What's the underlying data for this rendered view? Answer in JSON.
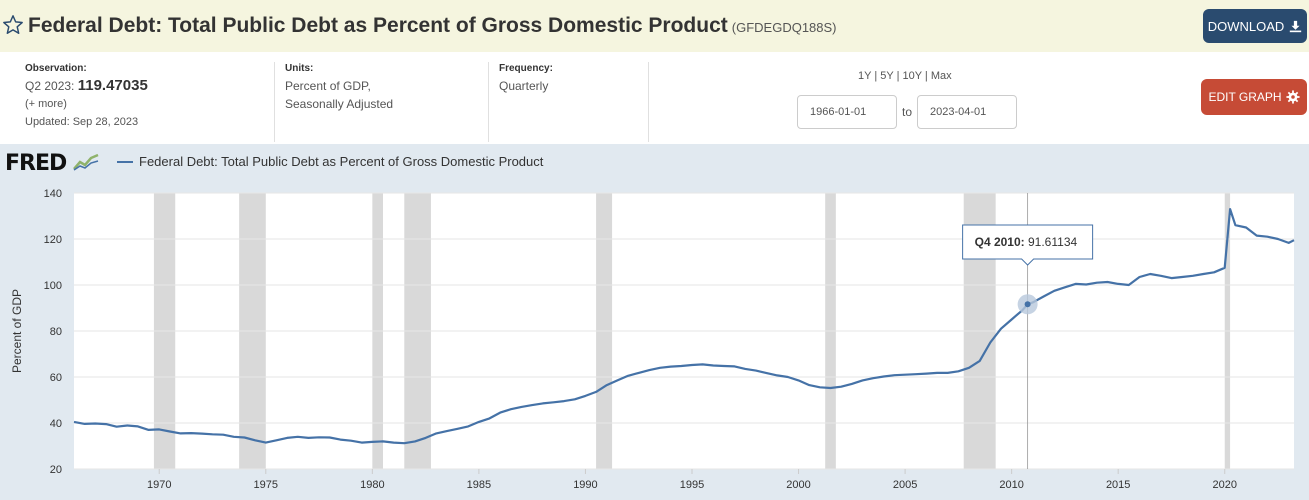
{
  "header": {
    "title": "Federal Debt: Total Public Debt as Percent of Gross Domestic Product",
    "series_id": "(GFDEGDQ188S)",
    "download_label": "DOWNLOAD"
  },
  "meta": {
    "observation_label": "Observation:",
    "observation_period": "Q2 2023:",
    "observation_value": "119.47035",
    "more_link": "(+ more)",
    "updated": "Updated: Sep 28, 2023",
    "units_label": "Units:",
    "units_line1": "Percent of GDP,",
    "units_line2": "Seasonally Adjusted",
    "frequency_label": "Frequency:",
    "frequency_value": "Quarterly",
    "ranges": [
      "1Y",
      "5Y",
      "10Y",
      "Max"
    ],
    "start_date": "1966-01-01",
    "to_label": "to",
    "end_date": "2023-04-01",
    "edit_label": "EDIT GRAPH"
  },
  "logo_text": "FRED",
  "colors": {
    "series": "#4572a7",
    "recession": "#d9d9d9",
    "download_bg": "#2a4b6f",
    "edit_bg": "#c64b36",
    "panel_bg": "#e1e9f0",
    "title_bg": "#f5f5df"
  },
  "chart_data": {
    "type": "line",
    "title": "Federal Debt: Total Public Debt as Percent of Gross Domestic Product",
    "xlabel": "",
    "ylabel": "Percent of GDP",
    "xlim": [
      1966.0,
      2023.25
    ],
    "ylim": [
      20,
      140
    ],
    "y_ticks": [
      20,
      40,
      60,
      80,
      100,
      120,
      140
    ],
    "x_ticks": [
      1970,
      1975,
      1980,
      1985,
      1990,
      1995,
      2000,
      2005,
      2010,
      2015,
      2020
    ],
    "grid": true,
    "legend": "top-left",
    "recessions": [
      [
        1969.75,
        1970.75
      ],
      [
        1973.75,
        1975.0
      ],
      [
        1980.0,
        1980.5
      ],
      [
        1981.5,
        1982.75
      ],
      [
        1990.5,
        1991.25
      ],
      [
        2001.25,
        2001.75
      ],
      [
        2007.75,
        2009.25
      ],
      [
        2020.0,
        2020.25
      ]
    ],
    "tooltip": {
      "x": 2010.75,
      "label": "Q4 2010:",
      "value": "91.61134"
    },
    "series": [
      {
        "name": "Federal Debt: Total Public Debt as Percent of Gross Domestic Product",
        "points": [
          [
            1966.0,
            40.5
          ],
          [
            1966.5,
            39.6
          ],
          [
            1967.0,
            39.8
          ],
          [
            1967.5,
            39.5
          ],
          [
            1968.0,
            38.4
          ],
          [
            1968.5,
            38.9
          ],
          [
            1969.0,
            38.5
          ],
          [
            1969.5,
            37.0
          ],
          [
            1970.0,
            37.2
          ],
          [
            1970.5,
            36.3
          ],
          [
            1971.0,
            35.5
          ],
          [
            1971.5,
            35.6
          ],
          [
            1972.0,
            35.4
          ],
          [
            1972.5,
            35.1
          ],
          [
            1973.0,
            34.9
          ],
          [
            1973.5,
            34.0
          ],
          [
            1974.0,
            33.7
          ],
          [
            1974.5,
            32.5
          ],
          [
            1975.0,
            31.5
          ],
          [
            1975.5,
            32.5
          ],
          [
            1976.0,
            33.5
          ],
          [
            1976.5,
            34.0
          ],
          [
            1977.0,
            33.5
          ],
          [
            1977.5,
            33.8
          ],
          [
            1978.0,
            33.7
          ],
          [
            1978.5,
            32.8
          ],
          [
            1979.0,
            32.3
          ],
          [
            1979.5,
            31.5
          ],
          [
            1980.0,
            31.8
          ],
          [
            1980.5,
            32.0
          ],
          [
            1981.0,
            31.5
          ],
          [
            1981.5,
            31.2
          ],
          [
            1982.0,
            32.0
          ],
          [
            1982.5,
            33.5
          ],
          [
            1983.0,
            35.5
          ],
          [
            1983.5,
            36.5
          ],
          [
            1984.0,
            37.5
          ],
          [
            1984.5,
            38.5
          ],
          [
            1985.0,
            40.5
          ],
          [
            1985.5,
            42.0
          ],
          [
            1986.0,
            44.5
          ],
          [
            1986.5,
            46.0
          ],
          [
            1987.0,
            47.0
          ],
          [
            1987.5,
            47.8
          ],
          [
            1988.0,
            48.5
          ],
          [
            1988.5,
            49.0
          ],
          [
            1989.0,
            49.5
          ],
          [
            1989.5,
            50.3
          ],
          [
            1990.0,
            51.8
          ],
          [
            1990.5,
            53.5
          ],
          [
            1991.0,
            56.5
          ],
          [
            1991.5,
            58.5
          ],
          [
            1992.0,
            60.5
          ],
          [
            1992.5,
            61.8
          ],
          [
            1993.0,
            63.0
          ],
          [
            1993.5,
            64.0
          ],
          [
            1994.0,
            64.5
          ],
          [
            1994.5,
            64.8
          ],
          [
            1995.0,
            65.2
          ],
          [
            1995.5,
            65.5
          ],
          [
            1996.0,
            65.0
          ],
          [
            1996.5,
            64.8
          ],
          [
            1997.0,
            64.6
          ],
          [
            1997.5,
            63.5
          ],
          [
            1998.0,
            62.8
          ],
          [
            1998.5,
            61.7
          ],
          [
            1999.0,
            60.7
          ],
          [
            1999.5,
            60.0
          ],
          [
            2000.0,
            58.5
          ],
          [
            2000.5,
            56.5
          ],
          [
            2001.0,
            55.5
          ],
          [
            2001.5,
            55.2
          ],
          [
            2002.0,
            55.8
          ],
          [
            2002.5,
            57.0
          ],
          [
            2003.0,
            58.5
          ],
          [
            2003.5,
            59.5
          ],
          [
            2004.0,
            60.2
          ],
          [
            2004.5,
            60.8
          ],
          [
            2005.0,
            61.0
          ],
          [
            2005.5,
            61.2
          ],
          [
            2006.0,
            61.5
          ],
          [
            2006.5,
            61.8
          ],
          [
            2007.0,
            61.8
          ],
          [
            2007.5,
            62.5
          ],
          [
            2008.0,
            64.0
          ],
          [
            2008.5,
            67.0
          ],
          [
            2009.0,
            75.0
          ],
          [
            2009.5,
            81.0
          ],
          [
            2010.0,
            85.0
          ],
          [
            2010.5,
            89.0
          ],
          [
            2010.75,
            91.6
          ],
          [
            2011.0,
            92.5
          ],
          [
            2011.5,
            95.0
          ],
          [
            2012.0,
            97.5
          ],
          [
            2012.5,
            99.0
          ],
          [
            2013.0,
            100.5
          ],
          [
            2013.5,
            100.2
          ],
          [
            2014.0,
            101.0
          ],
          [
            2014.5,
            101.3
          ],
          [
            2015.0,
            100.5
          ],
          [
            2015.5,
            100.0
          ],
          [
            2016.0,
            103.5
          ],
          [
            2016.5,
            104.8
          ],
          [
            2017.0,
            104.0
          ],
          [
            2017.5,
            103.0
          ],
          [
            2018.0,
            103.5
          ],
          [
            2018.5,
            104.0
          ],
          [
            2019.0,
            104.8
          ],
          [
            2019.5,
            105.5
          ],
          [
            2020.0,
            107.5
          ],
          [
            2020.25,
            133.0
          ],
          [
            2020.5,
            126.0
          ],
          [
            2021.0,
            125.0
          ],
          [
            2021.5,
            121.5
          ],
          [
            2022.0,
            121.0
          ],
          [
            2022.5,
            120.0
          ],
          [
            2023.0,
            118.3
          ],
          [
            2023.25,
            119.47
          ]
        ]
      }
    ]
  }
}
